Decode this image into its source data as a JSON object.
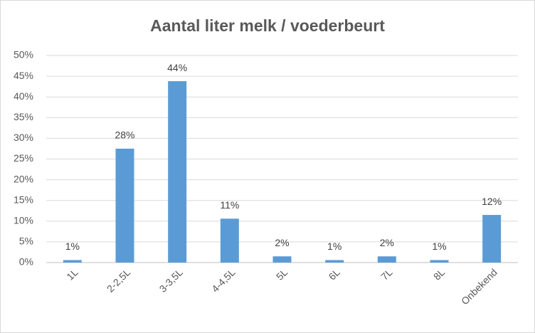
{
  "chart_data": {
    "type": "bar",
    "title": "Aantal liter melk / voederbeurt",
    "categories": [
      "1L",
      "2-2,5L",
      "3-3,5L",
      "4-4,5L",
      "5L",
      "6L",
      "7L",
      "8L",
      "Onbekend"
    ],
    "values": [
      0.6,
      27.5,
      43.8,
      10.6,
      1.5,
      0.6,
      1.5,
      0.6,
      11.5
    ],
    "value_labels": [
      "1%",
      "28%",
      "44%",
      "11%",
      "2%",
      "1%",
      "2%",
      "1%",
      "12%"
    ],
    "color": "#5b9bd5",
    "ylim": [
      0,
      50
    ],
    "yticks": [
      {
        "value": 0,
        "label": "0%"
      },
      {
        "value": 5,
        "label": "5%"
      },
      {
        "value": 10,
        "label": "10%"
      },
      {
        "value": 15,
        "label": "15%"
      },
      {
        "value": 20,
        "label": "20%"
      },
      {
        "value": 25,
        "label": "25%"
      },
      {
        "value": 30,
        "label": "30%"
      },
      {
        "value": 35,
        "label": "35%"
      },
      {
        "value": 40,
        "label": "40%"
      },
      {
        "value": 45,
        "label": "45%"
      },
      {
        "value": 50,
        "label": "50%"
      }
    ],
    "grid": true
  }
}
